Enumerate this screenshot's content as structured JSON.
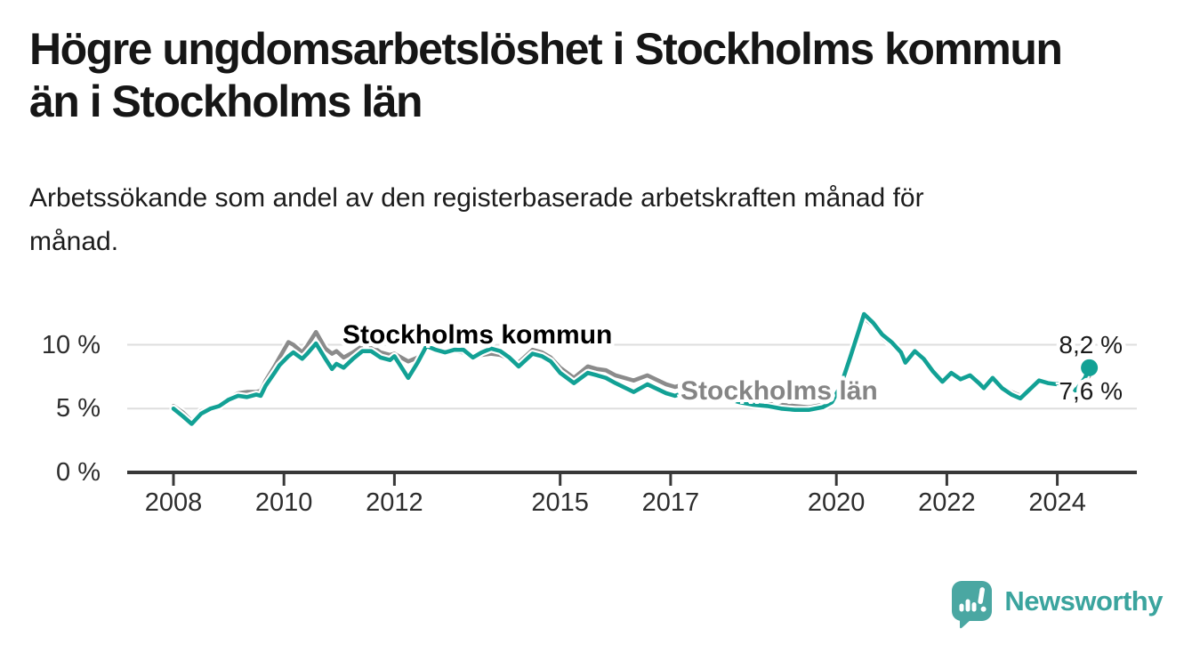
{
  "header": {
    "title_lines": [
      "Högre ungdomsarbetslöshet i Stockholms kommun",
      "än i Stockholms län"
    ],
    "subtitle_lines": [
      "Arbetssökande som andel av den registerbaserade arbetskraften månad för",
      "månad."
    ]
  },
  "chart_data": {
    "type": "line",
    "x_unit": "year (monthly observations)",
    "ylabel": "",
    "xlabel": "",
    "ylim": [
      0,
      13
    ],
    "xlim": [
      2007.16,
      2025.44
    ],
    "grid": "horizontal gridlines at 5 % and 10 %, dark baseline at 0 %",
    "legend_position": "inline labels on lines",
    "y_ticks": [
      {
        "value": 0,
        "label": "0 %"
      },
      {
        "value": 5,
        "label": "5 %"
      },
      {
        "value": 10,
        "label": "10 %"
      }
    ],
    "x_ticks": [
      {
        "value": 2008,
        "label": "2008"
      },
      {
        "value": 2010,
        "label": "2010"
      },
      {
        "value": 2012,
        "label": "2012"
      },
      {
        "value": 2015,
        "label": "2015"
      },
      {
        "value": 2017,
        "label": "2017"
      },
      {
        "value": 2020,
        "label": "2020"
      },
      {
        "value": 2022,
        "label": "2022"
      },
      {
        "value": 2024,
        "label": "2024"
      }
    ],
    "series": [
      {
        "name": "Stockholms kommun",
        "color": "#12A195",
        "end_label": "8,2 %",
        "end_value": 8.2,
        "points": [
          [
            2008.0,
            5.0
          ],
          [
            2008.17,
            4.4
          ],
          [
            2008.33,
            3.8
          ],
          [
            2008.5,
            4.6
          ],
          [
            2008.67,
            5.0
          ],
          [
            2008.83,
            5.2
          ],
          [
            2009.0,
            5.7
          ],
          [
            2009.17,
            6.0
          ],
          [
            2009.33,
            5.9
          ],
          [
            2009.5,
            6.1
          ],
          [
            2009.58,
            6.0
          ],
          [
            2009.67,
            6.8
          ],
          [
            2009.83,
            7.8
          ],
          [
            2009.92,
            8.4
          ],
          [
            2010.08,
            9.1
          ],
          [
            2010.17,
            9.4
          ],
          [
            2010.33,
            8.9
          ],
          [
            2010.42,
            9.3
          ],
          [
            2010.58,
            10.1
          ],
          [
            2010.75,
            8.9
          ],
          [
            2010.87,
            8.1
          ],
          [
            2010.95,
            8.5
          ],
          [
            2011.08,
            8.2
          ],
          [
            2011.25,
            8.9
          ],
          [
            2011.42,
            9.5
          ],
          [
            2011.58,
            9.5
          ],
          [
            2011.75,
            9.0
          ],
          [
            2011.92,
            8.8
          ],
          [
            2012.0,
            9.1
          ],
          [
            2012.25,
            7.4
          ],
          [
            2012.42,
            8.6
          ],
          [
            2012.58,
            9.9
          ],
          [
            2012.75,
            9.6
          ],
          [
            2012.92,
            9.4
          ],
          [
            2013.08,
            9.6
          ],
          [
            2013.25,
            9.6
          ],
          [
            2013.42,
            9.0
          ],
          [
            2013.58,
            9.4
          ],
          [
            2013.75,
            9.7
          ],
          [
            2013.92,
            9.5
          ],
          [
            2014.08,
            9.0
          ],
          [
            2014.25,
            8.3
          ],
          [
            2014.5,
            9.3
          ],
          [
            2014.67,
            9.1
          ],
          [
            2014.83,
            8.7
          ],
          [
            2015.0,
            7.8
          ],
          [
            2015.25,
            7.0
          ],
          [
            2015.5,
            7.8
          ],
          [
            2015.67,
            7.6
          ],
          [
            2015.83,
            7.4
          ],
          [
            2016.0,
            7.0
          ],
          [
            2016.33,
            6.3
          ],
          [
            2016.58,
            6.9
          ],
          [
            2016.92,
            6.2
          ],
          [
            2017.08,
            6.0
          ],
          [
            2017.33,
            6.4
          ],
          [
            2017.5,
            6.3
          ],
          [
            2017.67,
            6.1
          ],
          [
            2017.83,
            5.9
          ],
          [
            2018.0,
            5.8
          ],
          [
            2018.25,
            5.5
          ],
          [
            2018.5,
            5.3
          ],
          [
            2018.75,
            5.2
          ],
          [
            2019.0,
            5.0
          ],
          [
            2019.25,
            4.9
          ],
          [
            2019.5,
            4.9
          ],
          [
            2019.75,
            5.1
          ],
          [
            2019.92,
            5.5
          ],
          [
            2020.08,
            6.8
          ],
          [
            2020.25,
            9.0
          ],
          [
            2020.42,
            11.3
          ],
          [
            2020.5,
            12.4
          ],
          [
            2020.67,
            11.7
          ],
          [
            2020.83,
            10.8
          ],
          [
            2021.0,
            10.2
          ],
          [
            2021.17,
            9.4
          ],
          [
            2021.25,
            8.6
          ],
          [
            2021.42,
            9.5
          ],
          [
            2021.58,
            8.9
          ],
          [
            2021.75,
            7.9
          ],
          [
            2021.92,
            7.1
          ],
          [
            2022.08,
            7.8
          ],
          [
            2022.25,
            7.3
          ],
          [
            2022.42,
            7.6
          ],
          [
            2022.58,
            7.0
          ],
          [
            2022.67,
            6.6
          ],
          [
            2022.83,
            7.4
          ],
          [
            2023.0,
            6.6
          ],
          [
            2023.17,
            6.1
          ],
          [
            2023.33,
            5.8
          ],
          [
            2023.5,
            6.5
          ],
          [
            2023.67,
            7.2
          ],
          [
            2023.83,
            7.0
          ],
          [
            2024.0,
            6.9
          ],
          [
            2024.17,
            7.1
          ],
          [
            2024.33,
            6.4
          ],
          [
            2024.5,
            7.4
          ],
          [
            2024.58,
            8.2
          ]
        ]
      },
      {
        "name": "Stockholms län",
        "color": "#8B8B8B",
        "end_label": "7,6 %",
        "end_value": 7.6,
        "points": [
          [
            2008.0,
            5.2
          ],
          [
            2008.17,
            4.7
          ],
          [
            2008.33,
            4.0
          ],
          [
            2008.5,
            4.8
          ],
          [
            2008.67,
            5.1
          ],
          [
            2008.83,
            5.3
          ],
          [
            2009.0,
            5.8
          ],
          [
            2009.17,
            6.2
          ],
          [
            2009.33,
            6.3
          ],
          [
            2009.5,
            6.3
          ],
          [
            2009.58,
            6.4
          ],
          [
            2009.67,
            7.2
          ],
          [
            2009.83,
            8.3
          ],
          [
            2009.92,
            9.0
          ],
          [
            2010.08,
            10.2
          ],
          [
            2010.17,
            10.0
          ],
          [
            2010.33,
            9.4
          ],
          [
            2010.42,
            9.9
          ],
          [
            2010.58,
            11.0
          ],
          [
            2010.75,
            9.7
          ],
          [
            2010.87,
            9.3
          ],
          [
            2010.95,
            9.5
          ],
          [
            2011.08,
            9.0
          ],
          [
            2011.25,
            9.4
          ],
          [
            2011.42,
            9.9
          ],
          [
            2011.58,
            9.9
          ],
          [
            2011.75,
            9.4
          ],
          [
            2011.92,
            9.2
          ],
          [
            2012.0,
            9.3
          ],
          [
            2012.25,
            8.7
          ],
          [
            2012.42,
            9.0
          ],
          [
            2012.58,
            9.7
          ],
          [
            2012.75,
            9.8
          ],
          [
            2012.92,
            9.5
          ],
          [
            2013.08,
            9.5
          ],
          [
            2013.25,
            9.4
          ],
          [
            2013.42,
            9.0
          ],
          [
            2013.58,
            9.2
          ],
          [
            2013.75,
            9.3
          ],
          [
            2013.92,
            9.2
          ],
          [
            2014.08,
            8.9
          ],
          [
            2014.25,
            8.6
          ],
          [
            2014.5,
            9.6
          ],
          [
            2014.67,
            9.4
          ],
          [
            2014.83,
            9.0
          ],
          [
            2015.0,
            8.2
          ],
          [
            2015.25,
            7.4
          ],
          [
            2015.5,
            8.3
          ],
          [
            2015.67,
            8.1
          ],
          [
            2015.83,
            8.0
          ],
          [
            2016.0,
            7.6
          ],
          [
            2016.33,
            7.2
          ],
          [
            2016.58,
            7.6
          ],
          [
            2016.92,
            6.9
          ],
          [
            2017.08,
            6.7
          ],
          [
            2017.33,
            7.0
          ],
          [
            2017.5,
            6.9
          ],
          [
            2017.67,
            6.7
          ],
          [
            2017.83,
            6.4
          ],
          [
            2018.0,
            6.2
          ],
          [
            2018.25,
            5.9
          ],
          [
            2018.5,
            5.7
          ],
          [
            2018.75,
            5.5
          ],
          [
            2019.0,
            5.3
          ],
          [
            2019.25,
            5.2
          ],
          [
            2019.5,
            5.1
          ],
          [
            2019.75,
            5.3
          ],
          [
            2019.92,
            5.6
          ],
          [
            2020.08,
            6.9
          ],
          [
            2020.25,
            8.9
          ],
          [
            2020.42,
            11.0
          ],
          [
            2020.5,
            12.1
          ],
          [
            2020.67,
            11.5
          ],
          [
            2020.83,
            10.6
          ],
          [
            2021.0,
            10.0
          ],
          [
            2021.17,
            9.3
          ],
          [
            2021.25,
            8.6
          ],
          [
            2021.42,
            9.3
          ],
          [
            2021.58,
            8.8
          ],
          [
            2021.75,
            7.9
          ],
          [
            2021.92,
            7.2
          ],
          [
            2022.08,
            7.9
          ],
          [
            2022.25,
            7.4
          ],
          [
            2022.42,
            7.6
          ],
          [
            2022.58,
            7.1
          ],
          [
            2022.67,
            6.8
          ],
          [
            2022.83,
            7.5
          ],
          [
            2023.0,
            6.7
          ],
          [
            2023.17,
            6.3
          ],
          [
            2023.33,
            6.0
          ],
          [
            2023.5,
            6.6
          ],
          [
            2023.67,
            7.1
          ],
          [
            2023.83,
            7.0
          ],
          [
            2024.0,
            7.0
          ],
          [
            2024.17,
            7.1
          ],
          [
            2024.33,
            6.6
          ],
          [
            2024.5,
            7.1
          ],
          [
            2024.58,
            7.6
          ]
        ]
      }
    ]
  },
  "footer": {
    "logo_text": "Newsworthy",
    "logo_icon": "newsworthy-speech-bubble-bar-chart-icon",
    "brand_color": "#4AA7A2"
  }
}
